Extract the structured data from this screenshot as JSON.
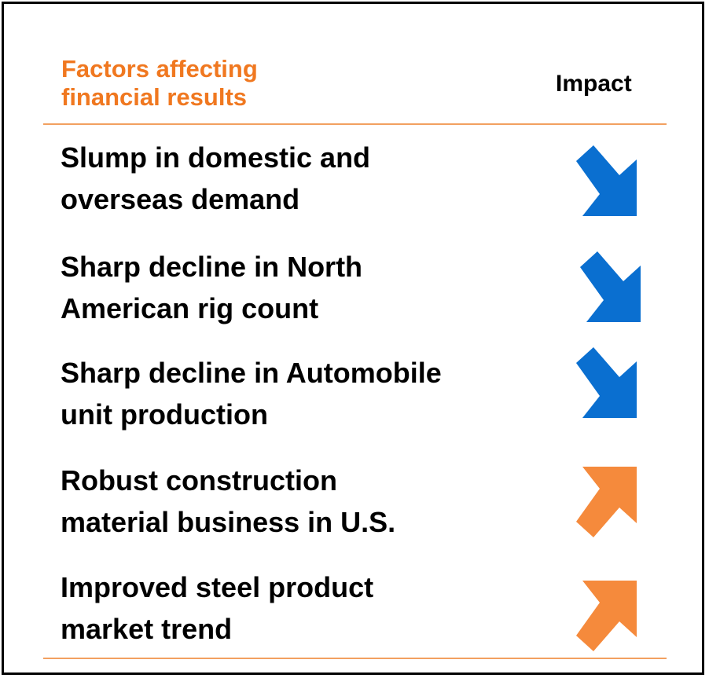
{
  "header": {
    "factors": "Factors affecting\nfinancial results",
    "impact": "Impact"
  },
  "rows": [
    {
      "factor": "Slump in domestic and\noverseas demand"
    },
    {
      "factor": "Sharp decline in North\nAmerican rig count"
    },
    {
      "factor": "Sharp decline in Automobile\nunit production"
    },
    {
      "factor": "Robust construction\nmaterial business in U.S."
    },
    {
      "factor": "Improved steel product\nmarket trend"
    }
  ]
}
